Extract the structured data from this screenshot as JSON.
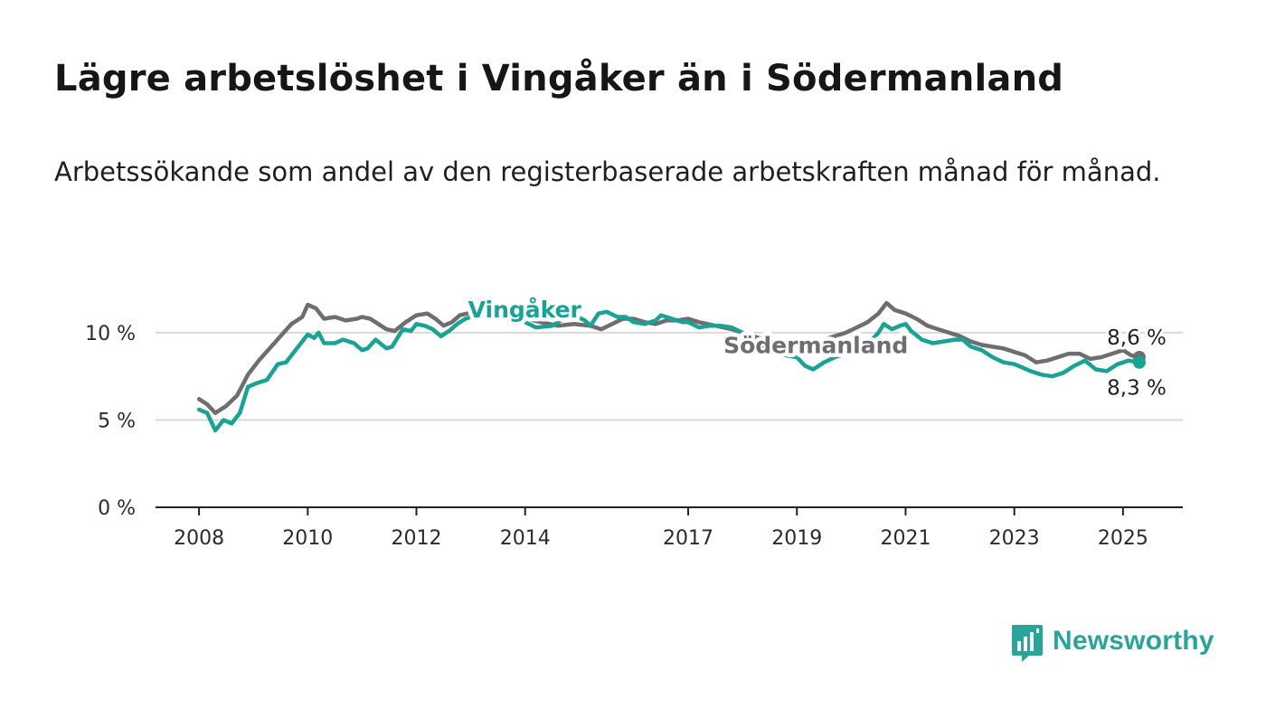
{
  "title": "Lägre arbetslöshet i Vingåker än i Södermanland",
  "subtitle": "Arbetssökande som andel av den registerbaserade arbetskraften månad för månad.",
  "brand": {
    "name": "Newsworthy",
    "color": "#2aa39a",
    "icon": "bar-chart-speech-bubble-icon"
  },
  "chart_data": {
    "type": "line",
    "x_range": [
      2007.2,
      2026.1
    ],
    "ylim": [
      0,
      13
    ],
    "y_ticks": [
      0,
      5,
      10
    ],
    "y_tick_labels": [
      "0 %",
      "5 %",
      "10 %"
    ],
    "x_ticks": [
      2008,
      2010,
      2012,
      2014,
      2017,
      2019,
      2021,
      2023,
      2025
    ],
    "x_tick_labels": [
      "2008",
      "2010",
      "2012",
      "2014",
      "2017",
      "2019",
      "2021",
      "2023",
      "2025"
    ],
    "grid": true,
    "legend": "inline labels",
    "series": [
      {
        "name": "Vingåker",
        "color": "#1aa394",
        "end_label": "8,3 %",
        "points": [
          [
            2008,
            5.6
          ],
          [
            2008.15,
            5.4
          ],
          [
            2008.3,
            4.4
          ],
          [
            2008.45,
            5.0
          ],
          [
            2008.6,
            4.8
          ],
          [
            2008.75,
            5.4
          ],
          [
            2008.9,
            6.9
          ],
          [
            2009.05,
            7.1
          ],
          [
            2009.25,
            7.3
          ],
          [
            2009.45,
            8.2
          ],
          [
            2009.6,
            8.3
          ],
          [
            2009.8,
            9.1
          ],
          [
            2010,
            9.9
          ],
          [
            2010.12,
            9.7
          ],
          [
            2010.2,
            10.0
          ],
          [
            2010.3,
            9.4
          ],
          [
            2010.5,
            9.4
          ],
          [
            2010.65,
            9.6
          ],
          [
            2010.85,
            9.4
          ],
          [
            2011,
            9.0
          ],
          [
            2011.1,
            9.1
          ],
          [
            2011.25,
            9.6
          ],
          [
            2011.45,
            9.1
          ],
          [
            2011.55,
            9.2
          ],
          [
            2011.75,
            10.2
          ],
          [
            2011.9,
            10.1
          ],
          [
            2012,
            10.5
          ],
          [
            2012.15,
            10.4
          ],
          [
            2012.3,
            10.2
          ],
          [
            2012.45,
            9.8
          ],
          [
            2012.6,
            10.1
          ],
          [
            2012.75,
            10.5
          ],
          [
            2012.9,
            10.8
          ],
          [
            2013.3,
            11.2
          ],
          [
            2013.8,
            10.9
          ],
          [
            2014.2,
            10.3
          ],
          [
            2014.5,
            10.4
          ],
          [
            2014.7,
            10.8
          ],
          [
            2014.9,
            11.0
          ],
          [
            2015.1,
            10.7
          ],
          [
            2015.2,
            10.4
          ],
          [
            2015.35,
            11.1
          ],
          [
            2015.5,
            11.2
          ],
          [
            2015.7,
            10.9
          ],
          [
            2015.85,
            10.9
          ],
          [
            2016,
            10.6
          ],
          [
            2016.2,
            10.5
          ],
          [
            2016.4,
            10.7
          ],
          [
            2016.5,
            11.0
          ],
          [
            2016.7,
            10.8
          ],
          [
            2016.9,
            10.6
          ],
          [
            2017,
            10.6
          ],
          [
            2017.2,
            10.3
          ],
          [
            2017.4,
            10.4
          ],
          [
            2017.6,
            10.4
          ],
          [
            2017.8,
            10.3
          ],
          [
            2018.0,
            10.0
          ],
          [
            2018.2,
            9.6
          ],
          [
            2018.4,
            9.2
          ],
          [
            2018.6,
            8.8
          ],
          [
            2018.8,
            8.7
          ],
          [
            2019.0,
            8.6
          ],
          [
            2019.15,
            8.1
          ],
          [
            2019.3,
            7.9
          ],
          [
            2019.5,
            8.3
          ],
          [
            2019.7,
            8.6
          ],
          [
            2019.9,
            8.8
          ],
          [
            2020.1,
            9.0
          ],
          [
            2020.3,
            9.3
          ],
          [
            2020.5,
            10.0
          ],
          [
            2020.6,
            10.5
          ],
          [
            2020.75,
            10.2
          ],
          [
            2020.9,
            10.4
          ],
          [
            2021,
            10.5
          ],
          [
            2021.1,
            10.1
          ],
          [
            2021.3,
            9.6
          ],
          [
            2021.5,
            9.4
          ],
          [
            2021.7,
            9.5
          ],
          [
            2021.9,
            9.6
          ],
          [
            2022.05,
            9.6
          ],
          [
            2022.2,
            9.2
          ],
          [
            2022.4,
            9.0
          ],
          [
            2022.6,
            8.6
          ],
          [
            2022.8,
            8.3
          ],
          [
            2023.0,
            8.2
          ],
          [
            2023.15,
            8.0
          ],
          [
            2023.3,
            7.8
          ],
          [
            2023.5,
            7.6
          ],
          [
            2023.7,
            7.5
          ],
          [
            2023.9,
            7.7
          ],
          [
            2024.1,
            8.1
          ],
          [
            2024.3,
            8.4
          ],
          [
            2024.5,
            7.9
          ],
          [
            2024.7,
            7.8
          ],
          [
            2024.9,
            8.2
          ],
          [
            2025.1,
            8.4
          ],
          [
            2025.3,
            8.3
          ]
        ]
      },
      {
        "name": "Södermanland",
        "color": "#6e6d70",
        "end_label": "8,6 %",
        "points": [
          [
            2008,
            6.2
          ],
          [
            2008.15,
            5.9
          ],
          [
            2008.3,
            5.4
          ],
          [
            2008.5,
            5.8
          ],
          [
            2008.7,
            6.4
          ],
          [
            2008.9,
            7.6
          ],
          [
            2009.1,
            8.4
          ],
          [
            2009.3,
            9.1
          ],
          [
            2009.5,
            9.8
          ],
          [
            2009.7,
            10.5
          ],
          [
            2009.9,
            10.9
          ],
          [
            2010,
            11.6
          ],
          [
            2010.15,
            11.4
          ],
          [
            2010.3,
            10.8
          ],
          [
            2010.5,
            10.9
          ],
          [
            2010.7,
            10.7
          ],
          [
            2010.9,
            10.8
          ],
          [
            2011,
            10.9
          ],
          [
            2011.15,
            10.8
          ],
          [
            2011.3,
            10.5
          ],
          [
            2011.45,
            10.2
          ],
          [
            2011.6,
            10.1
          ],
          [
            2011.8,
            10.6
          ],
          [
            2012,
            11.0
          ],
          [
            2012.2,
            11.1
          ],
          [
            2012.35,
            10.8
          ],
          [
            2012.5,
            10.4
          ],
          [
            2012.65,
            10.6
          ],
          [
            2012.8,
            11.0
          ],
          [
            2013.2,
            11.3
          ],
          [
            2013.6,
            11.1
          ],
          [
            2014.0,
            10.8
          ],
          [
            2014.3,
            10.6
          ],
          [
            2014.6,
            10.4
          ],
          [
            2014.9,
            10.5
          ],
          [
            2015.2,
            10.4
          ],
          [
            2015.4,
            10.2
          ],
          [
            2015.6,
            10.5
          ],
          [
            2015.8,
            10.8
          ],
          [
            2016,
            10.8
          ],
          [
            2016.2,
            10.6
          ],
          [
            2016.4,
            10.5
          ],
          [
            2016.6,
            10.7
          ],
          [
            2016.8,
            10.7
          ],
          [
            2017,
            10.8
          ],
          [
            2017.2,
            10.6
          ],
          [
            2017.5,
            10.4
          ],
          [
            2017.8,
            10.2
          ],
          [
            2018.1,
            9.9
          ],
          [
            2018.4,
            9.6
          ],
          [
            2018.7,
            9.4
          ],
          [
            2019.0,
            9.2
          ],
          [
            2019.3,
            9.4
          ],
          [
            2019.6,
            9.7
          ],
          [
            2019.9,
            10.0
          ],
          [
            2020.1,
            10.3
          ],
          [
            2020.3,
            10.6
          ],
          [
            2020.5,
            11.1
          ],
          [
            2020.65,
            11.7
          ],
          [
            2020.8,
            11.3
          ],
          [
            2021,
            11.1
          ],
          [
            2021.2,
            10.8
          ],
          [
            2021.4,
            10.4
          ],
          [
            2021.6,
            10.2
          ],
          [
            2021.8,
            10.0
          ],
          [
            2022,
            9.8
          ],
          [
            2022.2,
            9.5
          ],
          [
            2022.4,
            9.3
          ],
          [
            2022.6,
            9.2
          ],
          [
            2022.8,
            9.1
          ],
          [
            2023.0,
            8.9
          ],
          [
            2023.2,
            8.7
          ],
          [
            2023.4,
            8.3
          ],
          [
            2023.6,
            8.4
          ],
          [
            2023.8,
            8.6
          ],
          [
            2024.0,
            8.8
          ],
          [
            2024.2,
            8.8
          ],
          [
            2024.4,
            8.5
          ],
          [
            2024.6,
            8.6
          ],
          [
            2024.8,
            8.8
          ],
          [
            2025.0,
            9.0
          ],
          [
            2025.15,
            8.7
          ],
          [
            2025.3,
            8.6
          ]
        ]
      }
    ]
  }
}
